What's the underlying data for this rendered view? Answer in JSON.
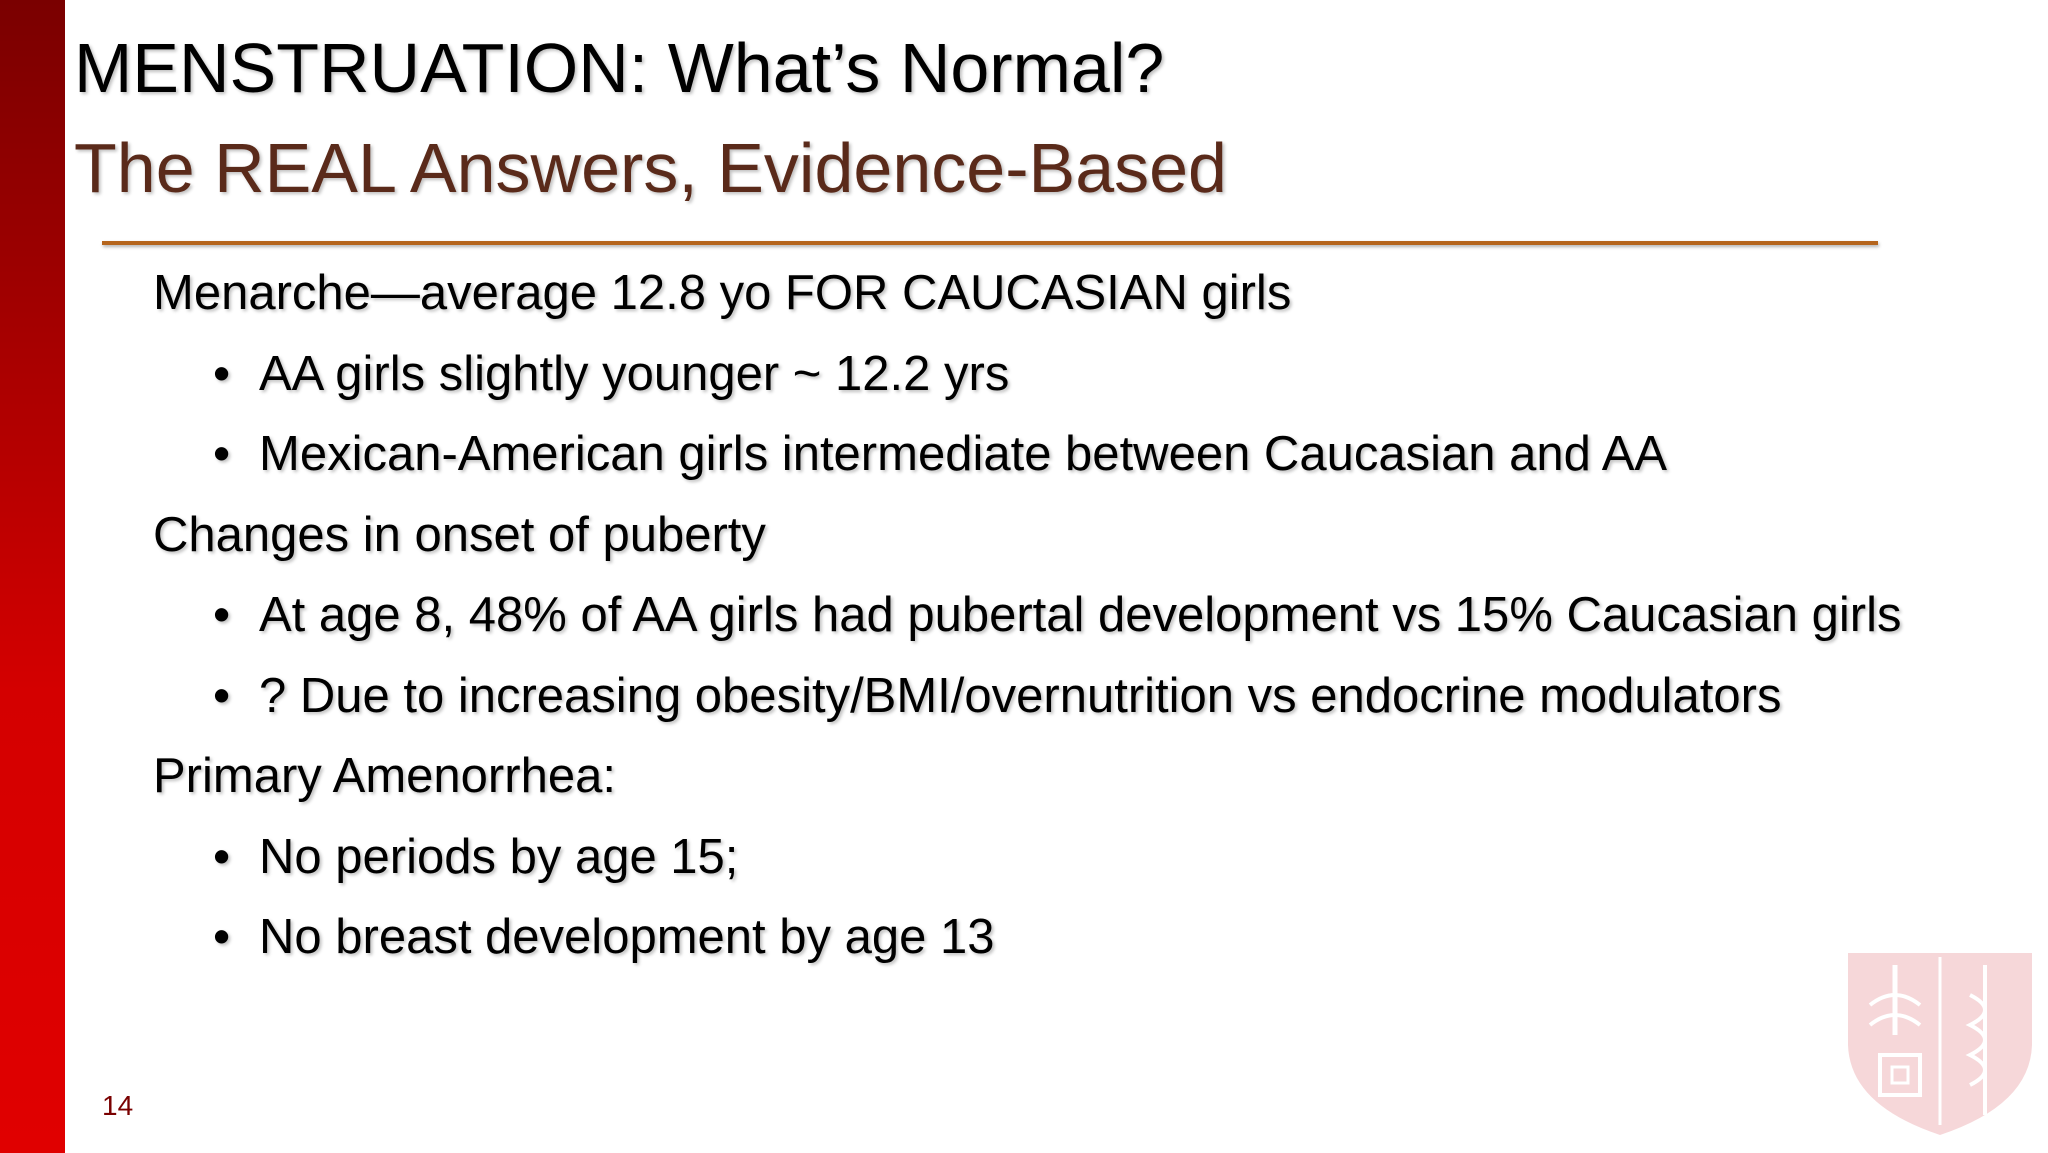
{
  "title": "MENSTRUATION: What’s Normal?",
  "subtitle": "The REAL Answers, Evidence-Based",
  "sections": [
    {
      "heading": "Menarche—average 12.8 yo FOR CAUCASIAN girls",
      "bullets": [
        "AA girls slightly younger ~ 12.2 yrs",
        "Mexican-American girls intermediate between Caucasian and AA"
      ]
    },
    {
      "heading": "Changes in onset of puberty",
      "bullets": [
        "At age 8, 48% of AA girls had pubertal development vs 15% Caucasian girls",
        "? Due to increasing obesity/BMI/overnutrition vs endocrine modulators"
      ]
    },
    {
      "heading": "Primary Amenorrhea:",
      "bullets": [
        "No periods by age 15;",
        "No breast development by age 13"
      ]
    }
  ],
  "page_number": "14"
}
